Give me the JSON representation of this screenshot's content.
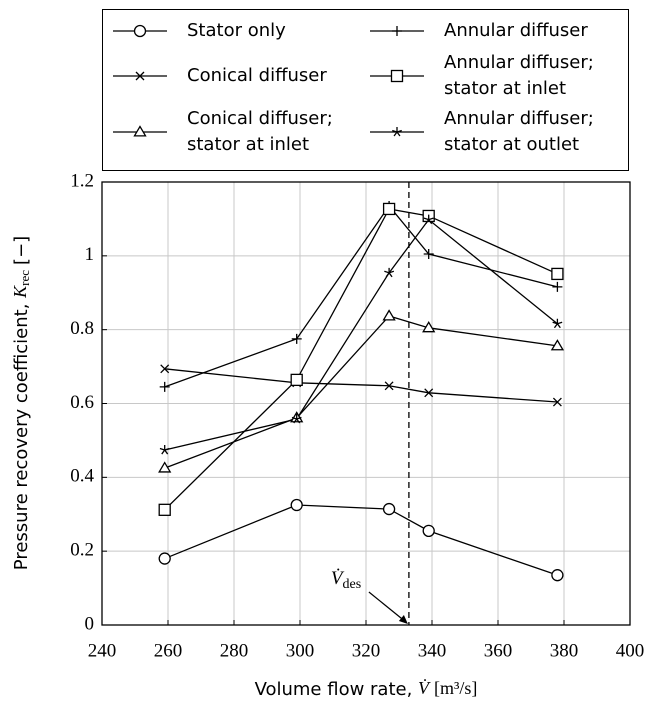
{
  "chart_data": {
    "type": "line",
    "x_label": {
      "text": "Volume flow rate, ",
      "symbol": "V̇",
      "unit": "[m³/s]"
    },
    "y_label": {
      "text": "Pressure recovery coefficient, ",
      "symbol": "K",
      "subscript": "rec",
      "unit": "[−]"
    },
    "x": [
      259,
      299,
      327,
      339,
      378
    ],
    "series": [
      {
        "name": "Stator only",
        "marker": "circle",
        "color": "#000000",
        "values": [
          0.18,
          0.325,
          0.314,
          0.255,
          0.135
        ]
      },
      {
        "name": "Conical diffuser",
        "marker": "x",
        "color": "#000000",
        "values": [
          0.694,
          0.656,
          0.648,
          0.629,
          0.604
        ]
      },
      {
        "name": "Conical diffuser; stator at inlet",
        "marker": "triangle",
        "color": "#000000",
        "values": [
          0.425,
          0.561,
          0.837,
          0.805,
          0.756
        ]
      },
      {
        "name": "Annular diffuser",
        "marker": "plus",
        "color": "#000000",
        "values": [
          0.645,
          0.775,
          1.135,
          1.005,
          0.916
        ]
      },
      {
        "name": "Annular diffuser; stator at inlet",
        "marker": "square",
        "color": "#000000",
        "values": [
          0.312,
          0.664,
          1.127,
          1.108,
          0.951
        ]
      },
      {
        "name": "Annular diffuser; stator at outlet",
        "marker": "star",
        "color": "#000000",
        "values": [
          0.474,
          0.558,
          0.954,
          1.098,
          0.816
        ]
      }
    ],
    "xlim": [
      240,
      400
    ],
    "xticks": [
      240,
      260,
      280,
      300,
      320,
      340,
      360,
      380,
      400
    ],
    "ylim": [
      0,
      1.2
    ],
    "yticks": [
      0,
      0.2,
      0.4,
      0.6,
      0.8,
      1,
      1.2
    ],
    "grid": true,
    "legend": "top",
    "annotations": [
      {
        "symbol": "V̇",
        "subscript": "des",
        "x": 333
      }
    ]
  }
}
